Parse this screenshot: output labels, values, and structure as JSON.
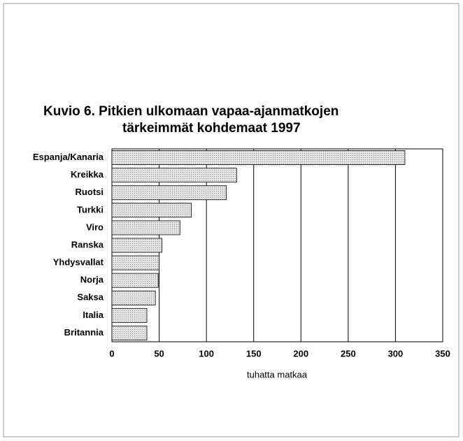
{
  "chart_data": {
    "type": "barh",
    "title": [
      "Kuvio 6.  Pitkien ulkomaan vapaa-ajanmatkojen",
      "tärkeimmät kohdemaat 1997"
    ],
    "categories": [
      "Espanja/Kanaria",
      "Kreikka",
      "Ruotsi",
      "Turkki",
      "Viro",
      "Ranska",
      "Yhdysvallat",
      "Norja",
      "Saksa",
      "Italia",
      "Britannia"
    ],
    "values": [
      310,
      132,
      121,
      84,
      72,
      53,
      50,
      49,
      46,
      37,
      37
    ],
    "color": "#cccccc",
    "xlim": [
      0,
      350
    ],
    "xticks": [
      0,
      50,
      100,
      150,
      200,
      250,
      300,
      350
    ],
    "xlabel": "tuhatta matkaa",
    "grid": true
  }
}
